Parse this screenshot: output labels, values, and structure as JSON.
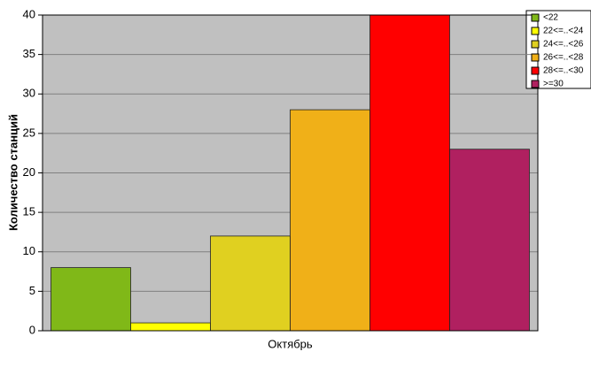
{
  "chart_data": {
    "type": "bar",
    "y_label": "Количество станций",
    "categories": [
      "Октябрь"
    ],
    "series": [
      {
        "name": "<22",
        "color": "#80b818",
        "values": [
          8
        ]
      },
      {
        "name": "22<=..<24",
        "color": "#ffff00",
        "values": [
          1
        ]
      },
      {
        "name": "24<=..<26",
        "color": "#e0d020",
        "values": [
          12
        ]
      },
      {
        "name": "26<=..<28",
        "color": "#f0b018",
        "values": [
          28
        ]
      },
      {
        "name": "28<=..<30",
        "color": "#ff0000",
        "values": [
          40
        ]
      },
      {
        "name": ">=30",
        "color": "#b02060",
        "values": [
          23
        ]
      }
    ],
    "ylim": [
      0,
      40
    ],
    "yticks": [
      0,
      5,
      10,
      15,
      20,
      25,
      30,
      35,
      40
    ],
    "grid": true
  }
}
